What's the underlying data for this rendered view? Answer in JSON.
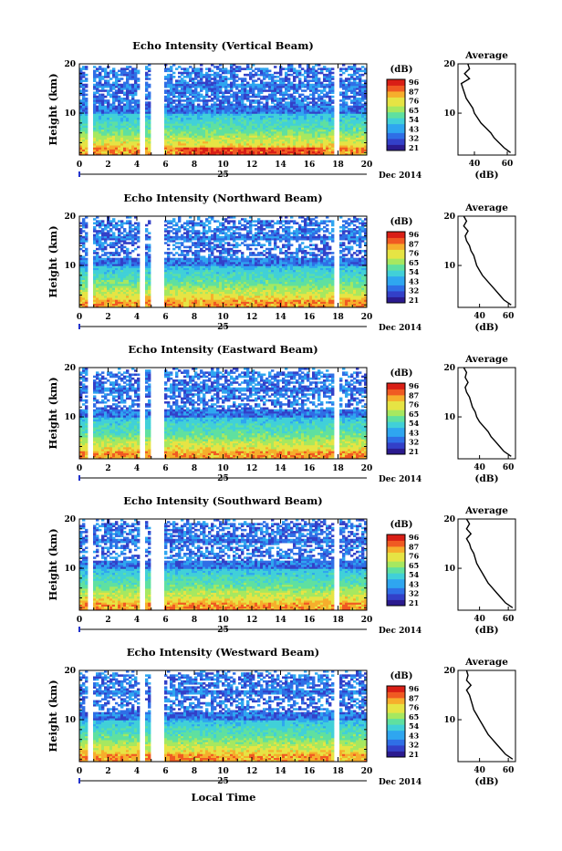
{
  "shared_text": {
    "height_label": "Height (km)",
    "cbar_unit": "(dB)",
    "avg_title": "Average",
    "avg_xlabel": "(dB)",
    "date_day": "25",
    "date_month_year": "Dec 2014",
    "time_ticks": [
      "0",
      "2",
      "4",
      "6",
      "8",
      "10",
      "12",
      "14",
      "16",
      "18",
      "20"
    ],
    "height_ticks": [
      "20",
      "10"
    ],
    "xlabel_bottom": "Local Time"
  },
  "colors": {
    "colormap": [
      "#2b1b8f",
      "#3340c8",
      "#2f6fe6",
      "#2fa6f0",
      "#41d0d8",
      "#5fe0a0",
      "#a6e860",
      "#e6e444",
      "#f6ae2c",
      "#f05a22",
      "#d91f16"
    ]
  },
  "chart_data": [
    {
      "type": "heatmap",
      "title": "Echo Intensity (Vertical Beam)",
      "xlabel": "Local Time",
      "ylabel": "Height (km)",
      "xlim": [
        0,
        20
      ],
      "ylim": [
        1.5,
        20
      ],
      "colorbar": {
        "label": "(dB)",
        "ticks": [
          "96",
          "87",
          "76",
          "65",
          "54",
          "43",
          "32",
          "21"
        ]
      },
      "data_gaps_hours": [
        [
          0.5,
          0.9
        ],
        [
          4.2,
          4.5
        ],
        [
          5.0,
          5.9
        ],
        [
          17.7,
          18.1
        ]
      ],
      "profile": {
        "title": "Average",
        "xlabel": "(dB)",
        "xticks": [
          "40",
          "60"
        ],
        "xlim": [
          30,
          65
        ],
        "height_km": [
          2,
          3,
          4,
          5,
          6,
          7,
          8,
          9,
          10,
          11,
          12,
          13,
          14,
          15,
          16,
          17,
          18,
          19,
          20
        ],
        "values_db": [
          62,
          58,
          55,
          52,
          50,
          47,
          44,
          42,
          40,
          39,
          37,
          35,
          34,
          33,
          32,
          37,
          34,
          37,
          36
        ]
      }
    },
    {
      "type": "heatmap",
      "title": "Echo Intensity (Northward Beam)",
      "xlabel": "Local Time",
      "ylabel": "Height (km)",
      "xlim": [
        0,
        20
      ],
      "ylim": [
        1.5,
        20
      ],
      "colorbar": {
        "label": "(dB)",
        "ticks": [
          "96",
          "87",
          "76",
          "65",
          "54",
          "43",
          "32",
          "21"
        ]
      },
      "data_gaps_hours": [
        [
          0.5,
          0.9
        ],
        [
          4.2,
          4.5
        ],
        [
          5.0,
          5.9
        ],
        [
          17.7,
          18.1
        ]
      ],
      "profile": {
        "title": "Average",
        "xlabel": "(dB)",
        "xticks": [
          "40",
          "60"
        ],
        "xlim": [
          25,
          65
        ],
        "height_km": [
          2,
          3,
          4,
          5,
          6,
          7,
          8,
          9,
          10,
          11,
          12,
          13,
          14,
          15,
          16,
          17,
          18,
          19,
          20
        ],
        "values_db": [
          62,
          57,
          54,
          51,
          48,
          45,
          42,
          40,
          38,
          37,
          36,
          34,
          33,
          31,
          30,
          32,
          29,
          31,
          29
        ]
      }
    },
    {
      "type": "heatmap",
      "title": "Echo Intensity (Eastward Beam)",
      "xlabel": "Local Time",
      "ylabel": "Height (km)",
      "xlim": [
        0,
        20
      ],
      "ylim": [
        1.5,
        20
      ],
      "colorbar": {
        "label": "(dB)",
        "ticks": [
          "96",
          "87",
          "76",
          "65",
          "54",
          "43",
          "32",
          "21"
        ]
      },
      "data_gaps_hours": [
        [
          0.5,
          0.9
        ],
        [
          4.2,
          4.5
        ],
        [
          5.0,
          5.9
        ],
        [
          17.7,
          18.1
        ]
      ],
      "profile": {
        "title": "Average",
        "xlabel": "(dB)",
        "xticks": [
          "40",
          "60"
        ],
        "xlim": [
          25,
          65
        ],
        "height_km": [
          2,
          3,
          4,
          5,
          6,
          7,
          8,
          9,
          10,
          11,
          12,
          13,
          14,
          15,
          16,
          17,
          18,
          19,
          20
        ],
        "values_db": [
          62,
          57,
          54,
          51,
          48,
          46,
          43,
          40,
          38,
          37,
          35,
          34,
          33,
          31,
          30,
          32,
          30,
          31,
          29
        ]
      }
    },
    {
      "type": "heatmap",
      "title": "Echo Intensity (Southward Beam)",
      "xlabel": "Local Time",
      "ylabel": "Height (km)",
      "xlim": [
        0,
        20
      ],
      "ylim": [
        1.5,
        20
      ],
      "colorbar": {
        "label": "(dB)",
        "ticks": [
          "96",
          "87",
          "76",
          "65",
          "54",
          "43",
          "32",
          "21"
        ]
      },
      "data_gaps_hours": [
        [
          0.5,
          0.9
        ],
        [
          4.2,
          4.5
        ],
        [
          5.0,
          5.9
        ],
        [
          17.7,
          18.1
        ]
      ],
      "profile": {
        "title": "Average",
        "xlabel": "(dB)",
        "xticks": [
          "40",
          "60"
        ],
        "xlim": [
          25,
          65
        ],
        "height_km": [
          2,
          3,
          4,
          5,
          6,
          7,
          8,
          9,
          10,
          11,
          12,
          13,
          14,
          15,
          16,
          17,
          18,
          19,
          20
        ],
        "values_db": [
          63,
          58,
          55,
          52,
          49,
          46,
          44,
          42,
          40,
          38,
          37,
          36,
          34,
          33,
          31,
          34,
          31,
          33,
          31
        ]
      }
    },
    {
      "type": "heatmap",
      "title": "Echo Intensity (Westward Beam)",
      "xlabel": "Local Time",
      "ylabel": "Height (km)",
      "xlim": [
        0,
        20
      ],
      "ylim": [
        1.5,
        20
      ],
      "colorbar": {
        "label": "(dB)",
        "ticks": [
          "96",
          "87",
          "76",
          "65",
          "54",
          "43",
          "32",
          "21"
        ]
      },
      "data_gaps_hours": [
        [
          0.5,
          0.9
        ],
        [
          4.2,
          4.5
        ],
        [
          5.0,
          5.9
        ],
        [
          17.7,
          18.1
        ]
      ],
      "profile": {
        "title": "Average",
        "xlabel": "(dB)",
        "xticks": [
          "40",
          "60"
        ],
        "xlim": [
          25,
          65
        ],
        "height_km": [
          2,
          3,
          4,
          5,
          6,
          7,
          8,
          9,
          10,
          11,
          12,
          13,
          14,
          15,
          16,
          17,
          18,
          19,
          20
        ],
        "values_db": [
          63,
          58,
          55,
          52,
          49,
          46,
          44,
          42,
          40,
          38,
          36,
          35,
          34,
          33,
          31,
          34,
          31,
          32,
          31
        ]
      }
    }
  ]
}
